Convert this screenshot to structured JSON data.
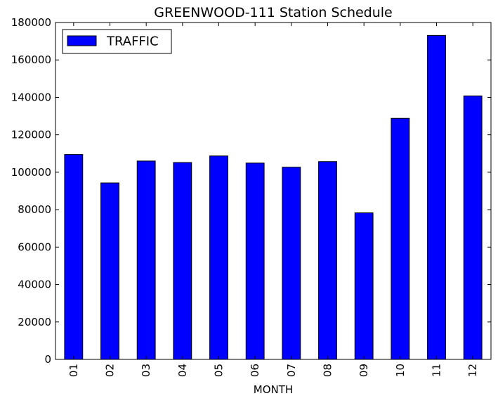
{
  "chart_data": {
    "type": "bar",
    "title": "GREENWOOD-111 Station Schedule",
    "xlabel": "MONTH",
    "ylabel": "",
    "categories": [
      "01",
      "02",
      "03",
      "04",
      "05",
      "06",
      "07",
      "08",
      "09",
      "10",
      "11",
      "12"
    ],
    "series": [
      {
        "name": "TRAFFIC",
        "color": "#0000ff",
        "values": [
          109500,
          94300,
          106000,
          105200,
          108700,
          104900,
          102700,
          105700,
          78300,
          128800,
          173100,
          140800
        ]
      }
    ],
    "ylim": [
      0,
      180000
    ],
    "yticks": [
      0,
      20000,
      40000,
      60000,
      80000,
      100000,
      120000,
      140000,
      160000,
      180000
    ],
    "grid": false,
    "legend": "top-left"
  }
}
